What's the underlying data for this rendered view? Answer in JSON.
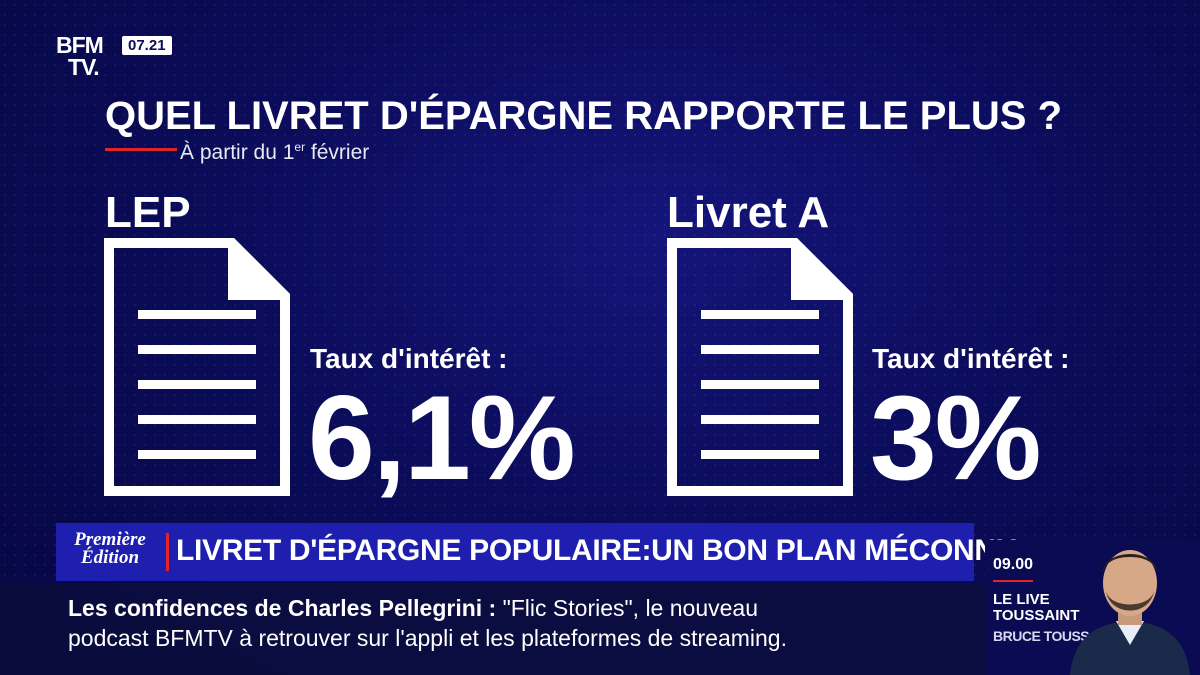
{
  "logo": {
    "line1": "BFM",
    "line2": "TV.",
    "clock": "07.21"
  },
  "title": "QUEL LIVRET D'ÉPARGNE RAPPORTE LE PLUS ?",
  "subtitle": {
    "prefix": "À partir du 1",
    "sup": "er",
    "suffix": " février"
  },
  "products": [
    {
      "name": "LEP",
      "rate_label": "Taux d'intérêt :",
      "rate": "6,1%"
    },
    {
      "name": "Livret A",
      "rate_label": "Taux d'intérêt :",
      "rate": "3%"
    }
  ],
  "banner": {
    "badge_line1": "Première",
    "badge_line2": "Édition",
    "headline": "LIVRET D'ÉPARGNE POPULAIRE:UN BON PLAN MÉCONNU"
  },
  "ticker": {
    "line1_bold": "Les confidences de Charles Pellegrini  :",
    "line1_rest": " \"Flic Stories\", le nouveau",
    "line2": "podcast BFMTV à retrouver sur l'appli et les plateformes de streaming."
  },
  "side": {
    "time": "09.00",
    "show_line1": "LE LIVE",
    "show_line2": "TOUSSAINT",
    "host": "BRUCE TOUSSAINT"
  },
  "colors": {
    "background": "#0b0c5a",
    "banner": "#1e1fae",
    "accent": "#e3232a"
  }
}
